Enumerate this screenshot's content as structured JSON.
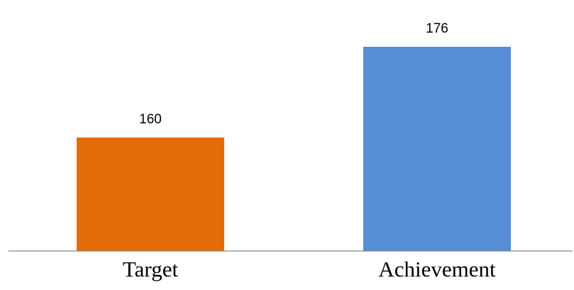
{
  "chart_data": {
    "type": "bar",
    "categories": [
      "Target",
      "Achievement"
    ],
    "values": [
      160,
      176
    ],
    "data_labels": [
      "160",
      "176"
    ],
    "colors": [
      "#E36C09",
      "#558ED5"
    ],
    "axis_color": "#868686",
    "title": "",
    "xlabel": "",
    "ylabel": "",
    "ylim": [
      140,
      180
    ],
    "grid": false,
    "legend": "none"
  }
}
